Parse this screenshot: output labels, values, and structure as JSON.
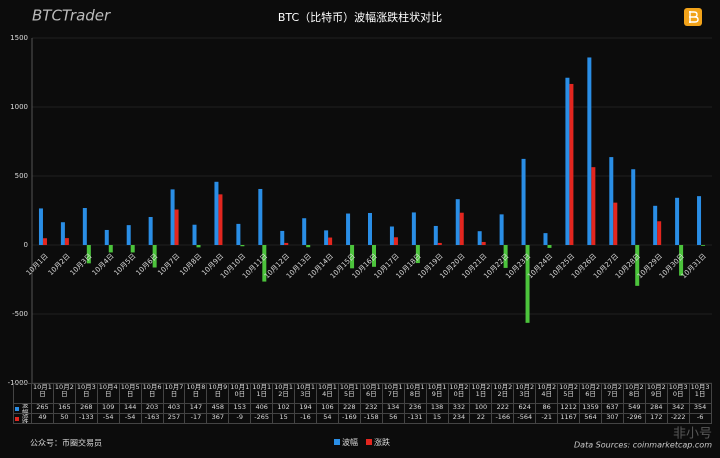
{
  "logo": "BTCTrader",
  "chart_data": {
    "type": "bar",
    "title": "BTC（比特币）波幅涨跌柱状对比",
    "categories": [
      "10月1日",
      "10月2日",
      "10月3日",
      "10月4日",
      "10月5日",
      "10月6日",
      "10月7日",
      "10月8日",
      "10月9日",
      "10月10日",
      "10月11日",
      "10月12日",
      "10月13日",
      "10月14日",
      "10月15日",
      "10月16日",
      "10月17日",
      "10月18日",
      "10月19日",
      "10月20日",
      "10月21日",
      "10月22日",
      "10月23日",
      "10月24日",
      "10月25日",
      "10月26日",
      "10月27日",
      "10月28日",
      "10月29日",
      "10月30日",
      "10月31日"
    ],
    "series": [
      {
        "name": "波幅",
        "color": "#2a8ee6",
        "values": [
          265,
          165,
          268,
          109,
          144,
          203,
          403,
          147,
          458,
          153,
          406,
          102,
          194,
          106,
          228,
          232,
          134,
          236,
          138,
          332,
          100,
          222,
          624,
          86,
          1212,
          1359,
          637,
          549,
          284,
          342,
          354
        ]
      },
      {
        "name": "涨跌",
        "color": "#e3261f",
        "negative_color": "#4cc43c",
        "values": [
          49,
          50,
          -133,
          -54,
          -54,
          -163,
          257,
          -17,
          367,
          -9,
          -265,
          15,
          -16,
          54,
          -169,
          -158,
          56,
          -131,
          15,
          234,
          22,
          -166,
          -564,
          -21,
          1167,
          564,
          307,
          -296,
          172,
          -222,
          -6
        ]
      }
    ],
    "ylim": [
      -1000,
      1500
    ],
    "yticks": [
      -1000,
      -500,
      0,
      500,
      1000,
      1500
    ],
    "grid": true,
    "data_table": true,
    "legend": "bottom"
  },
  "footer": {
    "account": "公众号：币圈交易员",
    "source": "Data Sources: coinmarketcap.com",
    "watermark": "非小号"
  }
}
